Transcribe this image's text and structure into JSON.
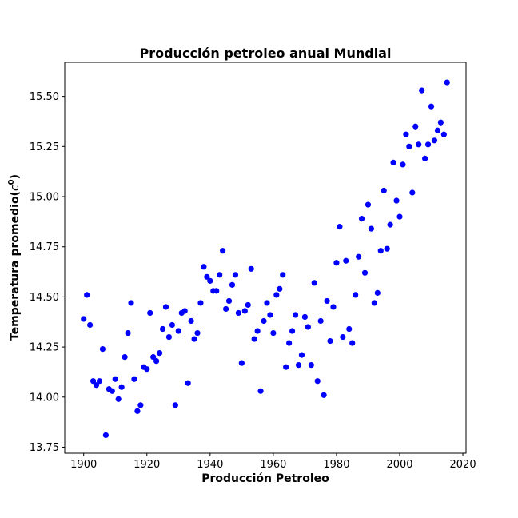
{
  "chart_data": {
    "type": "scatter",
    "title": "Producción petroleo anual Mundial",
    "xlabel": "Producción Petroleo",
    "ylabel_main": "Temperatura promedio(",
    "ylabel_base": "c",
    "ylabel_sup": "0",
    "ylabel_close": ")",
    "xlim": [
      1894,
      2021
    ],
    "ylim": [
      13.72,
      15.67
    ],
    "x_ticks": [
      1900,
      1920,
      1940,
      1960,
      1980,
      2000,
      2020
    ],
    "y_ticks": [
      13.75,
      14.0,
      14.25,
      14.5,
      14.75,
      15.0,
      15.25,
      15.5
    ],
    "x_tick_labels": [
      "1900",
      "1920",
      "1940",
      "1960",
      "1980",
      "2000",
      "2020"
    ],
    "y_tick_labels": [
      "13.75",
      "14.00",
      "14.25",
      "14.50",
      "14.75",
      "15.00",
      "15.25",
      "15.50"
    ],
    "grid": false,
    "marker_color": "#0000ff",
    "x": [
      1900,
      1901,
      1902,
      1903,
      1904,
      1905,
      1906,
      1907,
      1908,
      1909,
      1910,
      1911,
      1912,
      1913,
      1914,
      1915,
      1916,
      1917,
      1918,
      1919,
      1920,
      1921,
      1922,
      1923,
      1924,
      1925,
      1926,
      1927,
      1928,
      1929,
      1930,
      1931,
      1932,
      1933,
      1934,
      1935,
      1936,
      1937,
      1938,
      1939,
      1940,
      1941,
      1942,
      1943,
      1944,
      1945,
      1946,
      1947,
      1948,
      1949,
      1950,
      1951,
      1952,
      1953,
      1954,
      1955,
      1956,
      1957,
      1958,
      1959,
      1960,
      1961,
      1962,
      1963,
      1964,
      1965,
      1966,
      1967,
      1968,
      1969,
      1970,
      1971,
      1972,
      1973,
      1974,
      1975,
      1976,
      1977,
      1978,
      1979,
      1980,
      1981,
      1982,
      1983,
      1984,
      1985,
      1986,
      1987,
      1988,
      1989,
      1990,
      1991,
      1992,
      1993,
      1994,
      1995,
      1996,
      1997,
      1998,
      1999,
      2000,
      2001,
      2002,
      2003,
      2004,
      2005,
      2006,
      2007,
      2008,
      2009,
      2010,
      2011,
      2012,
      2013,
      2014,
      2015
    ],
    "y": [
      14.39,
      14.51,
      14.36,
      14.08,
      14.06,
      14.08,
      14.24,
      13.81,
      14.04,
      14.03,
      14.09,
      13.99,
      14.05,
      14.2,
      14.32,
      14.47,
      14.09,
      13.93,
      13.96,
      14.15,
      14.14,
      14.42,
      14.2,
      14.18,
      14.22,
      14.34,
      14.45,
      14.3,
      14.36,
      13.96,
      14.33,
      14.42,
      14.43,
      14.07,
      14.38,
      14.29,
      14.32,
      14.47,
      14.65,
      14.6,
      14.58,
      14.53,
      14.53,
      14.61,
      14.73,
      14.44,
      14.48,
      14.56,
      14.61,
      14.42,
      14.17,
      14.43,
      14.46,
      14.64,
      14.29,
      14.33,
      14.03,
      14.38,
      14.47,
      14.41,
      14.32,
      14.51,
      14.54,
      14.61,
      14.15,
      14.27,
      14.33,
      14.41,
      14.16,
      14.21,
      14.4,
      14.35,
      14.16,
      14.57,
      14.08,
      14.38,
      14.01,
      14.48,
      14.28,
      14.45,
      14.67,
      14.85,
      14.3,
      14.68,
      14.34,
      14.27,
      14.51,
      14.7,
      14.89,
      14.62,
      14.96,
      14.84,
      14.47,
      14.52,
      14.73,
      15.03,
      14.74,
      14.86,
      15.17,
      14.98,
      14.9,
      15.16,
      15.31,
      15.25,
      15.02,
      15.35,
      15.26,
      15.53,
      15.19,
      15.26,
      15.45,
      15.28,
      15.33,
      15.37,
      15.31,
      15.57
    ]
  }
}
